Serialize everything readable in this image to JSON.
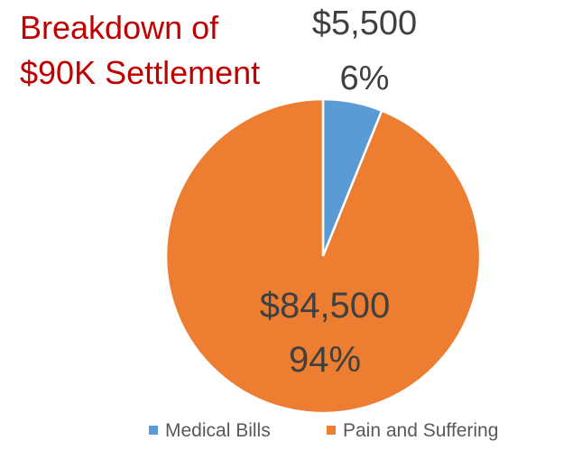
{
  "chart_data": {
    "type": "pie",
    "title_lines": [
      "Breakdown of",
      "$90K Settlement"
    ],
    "categories": [
      "Medical Bills",
      "Pain and Suffering"
    ],
    "values": [
      5500,
      84500
    ],
    "value_labels": [
      "$5,500",
      "$84,500"
    ],
    "percent_labels": [
      "6%",
      "94%"
    ],
    "colors": [
      "#5b9bd5",
      "#ed7d31"
    ],
    "legend_position": "bottom"
  }
}
